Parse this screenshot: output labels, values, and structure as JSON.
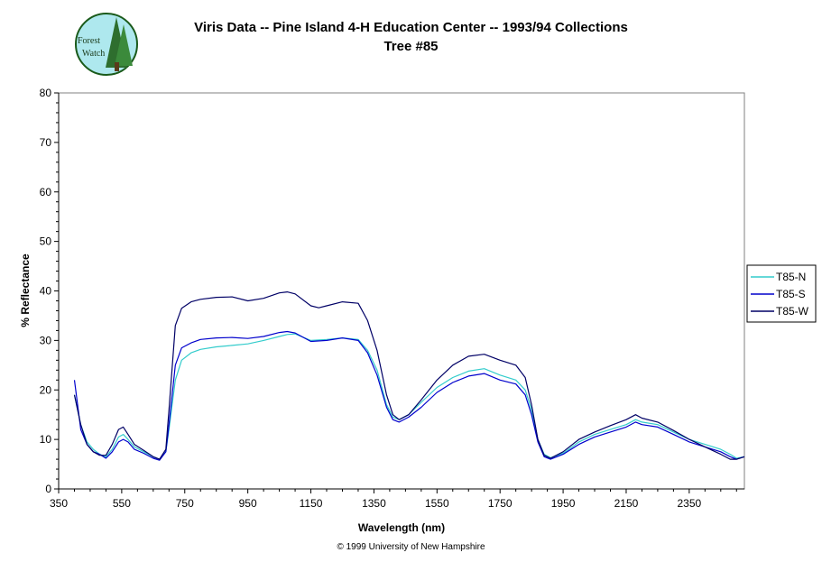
{
  "chart_data": {
    "type": "line",
    "title": "Viris Data -- Pine Island 4-H Education Center -- 1993/94 Collections",
    "subtitle": "Tree #85",
    "xlabel": "Wavelength (nm)",
    "ylabel": "% Reflectance",
    "xlim": [
      350,
      2525
    ],
    "ylim": [
      0,
      80
    ],
    "x_ticks": [
      350,
      550,
      750,
      950,
      1150,
      1350,
      1550,
      1750,
      1950,
      2150,
      2350
    ],
    "y_ticks": [
      0,
      10,
      20,
      30,
      40,
      50,
      60,
      70,
      80
    ],
    "grid": false,
    "legend_position": "right",
    "series": [
      {
        "name": "T85-N",
        "color": "#33CCCC",
        "points": [
          [
            400,
            19
          ],
          [
            420,
            13
          ],
          [
            440,
            9.5
          ],
          [
            460,
            8
          ],
          [
            480,
            7
          ],
          [
            500,
            6.5
          ],
          [
            520,
            8
          ],
          [
            540,
            10.5
          ],
          [
            555,
            11
          ],
          [
            570,
            10
          ],
          [
            590,
            8.5
          ],
          [
            620,
            7.5
          ],
          [
            650,
            6.5
          ],
          [
            670,
            6
          ],
          [
            690,
            7.5
          ],
          [
            700,
            12
          ],
          [
            720,
            22
          ],
          [
            740,
            26
          ],
          [
            770,
            27.5
          ],
          [
            800,
            28.2
          ],
          [
            850,
            28.7
          ],
          [
            900,
            29
          ],
          [
            950,
            29.3
          ],
          [
            1000,
            30
          ],
          [
            1050,
            30.8
          ],
          [
            1075,
            31.2
          ],
          [
            1100,
            31.3
          ],
          [
            1150,
            30
          ],
          [
            1200,
            30.2
          ],
          [
            1250,
            30.5
          ],
          [
            1300,
            30.2
          ],
          [
            1330,
            28
          ],
          [
            1360,
            24
          ],
          [
            1390,
            17
          ],
          [
            1410,
            14.5
          ],
          [
            1430,
            14
          ],
          [
            1460,
            15
          ],
          [
            1500,
            17.5
          ],
          [
            1550,
            20.5
          ],
          [
            1600,
            22.5
          ],
          [
            1650,
            23.8
          ],
          [
            1700,
            24.3
          ],
          [
            1750,
            23
          ],
          [
            1800,
            22
          ],
          [
            1830,
            20
          ],
          [
            1850,
            16
          ],
          [
            1870,
            10
          ],
          [
            1890,
            7
          ],
          [
            1910,
            6.3
          ],
          [
            1950,
            7.2
          ],
          [
            2000,
            9.5
          ],
          [
            2050,
            11
          ],
          [
            2100,
            12
          ],
          [
            2150,
            13
          ],
          [
            2180,
            14
          ],
          [
            2200,
            13.5
          ],
          [
            2250,
            13
          ],
          [
            2300,
            11.5
          ],
          [
            2350,
            10
          ],
          [
            2400,
            9
          ],
          [
            2450,
            8
          ],
          [
            2480,
            7
          ],
          [
            2500,
            6.2
          ],
          [
            2525,
            6.5
          ]
        ]
      },
      {
        "name": "T85-S",
        "color": "#0000CC",
        "points": [
          [
            400,
            22
          ],
          [
            420,
            12
          ],
          [
            440,
            9
          ],
          [
            460,
            7.5
          ],
          [
            480,
            7
          ],
          [
            500,
            6.2
          ],
          [
            520,
            7.5
          ],
          [
            540,
            9.5
          ],
          [
            555,
            10
          ],
          [
            570,
            9.5
          ],
          [
            590,
            8
          ],
          [
            620,
            7.2
          ],
          [
            650,
            6.2
          ],
          [
            670,
            5.8
          ],
          [
            690,
            7.5
          ],
          [
            700,
            13
          ],
          [
            720,
            25
          ],
          [
            740,
            28.5
          ],
          [
            770,
            29.5
          ],
          [
            800,
            30.2
          ],
          [
            850,
            30.5
          ],
          [
            900,
            30.6
          ],
          [
            950,
            30.4
          ],
          [
            1000,
            30.8
          ],
          [
            1050,
            31.6
          ],
          [
            1075,
            31.8
          ],
          [
            1100,
            31.5
          ],
          [
            1150,
            29.8
          ],
          [
            1200,
            30
          ],
          [
            1250,
            30.5
          ],
          [
            1300,
            30
          ],
          [
            1330,
            27.5
          ],
          [
            1360,
            23
          ],
          [
            1390,
            16.5
          ],
          [
            1410,
            14
          ],
          [
            1430,
            13.5
          ],
          [
            1460,
            14.5
          ],
          [
            1500,
            16.5
          ],
          [
            1550,
            19.5
          ],
          [
            1600,
            21.5
          ],
          [
            1650,
            22.8
          ],
          [
            1700,
            23.3
          ],
          [
            1750,
            22
          ],
          [
            1800,
            21.2
          ],
          [
            1830,
            19
          ],
          [
            1850,
            15
          ],
          [
            1870,
            9.5
          ],
          [
            1890,
            6.5
          ],
          [
            1910,
            6
          ],
          [
            1950,
            7
          ],
          [
            2000,
            9
          ],
          [
            2050,
            10.5
          ],
          [
            2100,
            11.5
          ],
          [
            2150,
            12.5
          ],
          [
            2180,
            13.5
          ],
          [
            2200,
            13
          ],
          [
            2250,
            12.5
          ],
          [
            2300,
            11
          ],
          [
            2350,
            9.5
          ],
          [
            2400,
            8.5
          ],
          [
            2450,
            7.5
          ],
          [
            2480,
            6.5
          ],
          [
            2500,
            6
          ],
          [
            2525,
            6.5
          ]
        ]
      },
      {
        "name": "T85-W",
        "color": "#000066",
        "points": [
          [
            400,
            19
          ],
          [
            420,
            13
          ],
          [
            440,
            9
          ],
          [
            460,
            7.5
          ],
          [
            480,
            6.8
          ],
          [
            500,
            6.8
          ],
          [
            520,
            9
          ],
          [
            540,
            12
          ],
          [
            555,
            12.5
          ],
          [
            570,
            11
          ],
          [
            590,
            9
          ],
          [
            620,
            7.8
          ],
          [
            650,
            6.5
          ],
          [
            670,
            6
          ],
          [
            690,
            8
          ],
          [
            700,
            16
          ],
          [
            720,
            33
          ],
          [
            740,
            36.5
          ],
          [
            770,
            37.8
          ],
          [
            800,
            38.3
          ],
          [
            850,
            38.7
          ],
          [
            900,
            38.8
          ],
          [
            950,
            38
          ],
          [
            1000,
            38.5
          ],
          [
            1050,
            39.6
          ],
          [
            1075,
            39.8
          ],
          [
            1100,
            39.4
          ],
          [
            1150,
            37
          ],
          [
            1175,
            36.6
          ],
          [
            1200,
            37
          ],
          [
            1250,
            37.8
          ],
          [
            1300,
            37.5
          ],
          [
            1330,
            34
          ],
          [
            1360,
            28
          ],
          [
            1390,
            19
          ],
          [
            1410,
            15
          ],
          [
            1430,
            14
          ],
          [
            1460,
            15
          ],
          [
            1500,
            18
          ],
          [
            1550,
            22
          ],
          [
            1600,
            25
          ],
          [
            1650,
            26.8
          ],
          [
            1700,
            27.2
          ],
          [
            1750,
            26
          ],
          [
            1800,
            25
          ],
          [
            1830,
            22.5
          ],
          [
            1850,
            17
          ],
          [
            1870,
            10
          ],
          [
            1890,
            6.8
          ],
          [
            1910,
            6.2
          ],
          [
            1950,
            7.5
          ],
          [
            2000,
            10
          ],
          [
            2050,
            11.5
          ],
          [
            2100,
            12.8
          ],
          [
            2150,
            14
          ],
          [
            2180,
            15
          ],
          [
            2200,
            14.3
          ],
          [
            2250,
            13.5
          ],
          [
            2300,
            11.8
          ],
          [
            2350,
            10
          ],
          [
            2400,
            8.5
          ],
          [
            2450,
            7
          ],
          [
            2480,
            6
          ],
          [
            2500,
            6
          ],
          [
            2525,
            6.5
          ]
        ]
      }
    ]
  },
  "logo": {
    "line1": "Forest",
    "line2": "Watch"
  },
  "footer": "© 1999 University of New Hampshire"
}
